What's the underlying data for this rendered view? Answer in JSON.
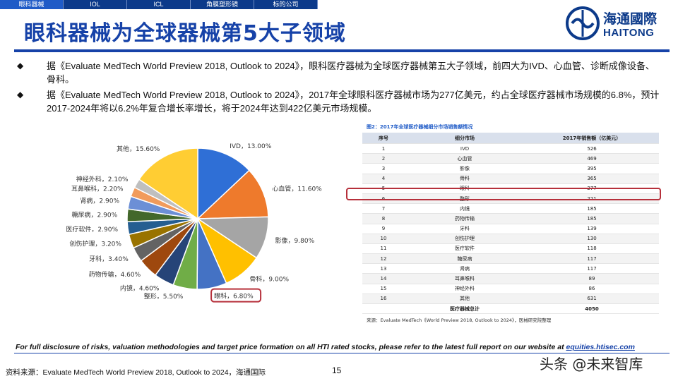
{
  "nav": {
    "tabs": [
      "眼科器械",
      "IOL",
      "ICL",
      "角膜塑形镜",
      "标的公司"
    ],
    "active_index": 0
  },
  "title": "眼科器械为全球器械第5大子领域",
  "logo": {
    "cn": "海通國際",
    "en": "HAITONG"
  },
  "bullets": [
    "据《Evaluate MedTech World Preview 2018, Outlook to 2024》，眼科医疗器械为全球医疗器械第五大子领域，前四大为IVD、心血管、诊断成像设备、骨科。",
    "据《Evaluate MedTech World Preview 2018, Outlook to 2024》，2017年全球眼科医疗器械市场为277亿美元，约占全球医疗器械市场规模的6.8%，预计2017-2024年将以6.2%年复合增长率增长，将于2024年达到422亿美元市场规模。"
  ],
  "bullet_marker": "◆",
  "table": {
    "title": "图2：2017年全球医疗器械细分市场销售额情况",
    "headers": [
      "序号",
      "细分市场",
      "2017年销售额（亿美元）"
    ],
    "rows": [
      [
        "1",
        "IVD",
        "526"
      ],
      [
        "2",
        "心血管",
        "469"
      ],
      [
        "3",
        "影像",
        "395"
      ],
      [
        "4",
        "骨科",
        "365"
      ],
      [
        "5",
        "眼科",
        "277"
      ],
      [
        "6",
        "整形",
        "221"
      ],
      [
        "7",
        "内镜",
        "185"
      ],
      [
        "8",
        "药物传输",
        "185"
      ],
      [
        "9",
        "牙科",
        "139"
      ],
      [
        "10",
        "创伤护理",
        "130"
      ],
      [
        "11",
        "医疗软件",
        "118"
      ],
      [
        "12",
        "糖尿病",
        "117"
      ],
      [
        "13",
        "肾病",
        "117"
      ],
      [
        "14",
        "耳鼻喉科",
        "89"
      ],
      [
        "15",
        "神经外科",
        "86"
      ],
      [
        "16",
        "其他",
        "631"
      ]
    ],
    "total_label": "医疗器械总计",
    "total_value": "4050",
    "note": "来源：Evaluate MedTech《World Preview 2018, Outlook to 2024》，医械研究院整理"
  },
  "chart_data": {
    "type": "pie",
    "title": "",
    "slices": [
      {
        "label": "IVD，13.00%",
        "value": 13.0,
        "color": "#2f6fd6"
      },
      {
        "label": "心血管，11.60%",
        "value": 11.6,
        "color": "#ee7a2c"
      },
      {
        "label": "影像，9.80%",
        "value": 9.8,
        "color": "#a5a5a5"
      },
      {
        "label": "骨科，9.00%",
        "value": 9.0,
        "color": "#ffc000"
      },
      {
        "label": "眼科，6.80%",
        "value": 6.8,
        "color": "#4472c4"
      },
      {
        "label": "整形，5.50%",
        "value": 5.5,
        "color": "#70ad47"
      },
      {
        "label": "内镜，4.60%",
        "value": 4.6,
        "color": "#264478"
      },
      {
        "label": "药物传输，4.60%",
        "value": 4.6,
        "color": "#9e480e"
      },
      {
        "label": "牙科，3.40%",
        "value": 3.4,
        "color": "#636363"
      },
      {
        "label": "创伤护理，3.20%",
        "value": 3.2,
        "color": "#997300"
      },
      {
        "label": "医疗软件，2.90%",
        "value": 2.9,
        "color": "#255e91"
      },
      {
        "label": "糖尿病，2.90%",
        "value": 2.9,
        "color": "#43682b"
      },
      {
        "label": "肾病，2.90%",
        "value": 2.9,
        "color": "#6c8fd6"
      },
      {
        "label": "耳鼻喉科，2.20%",
        "value": 2.2,
        "color": "#f19b5c"
      },
      {
        "label": "神经外科，2.10%",
        "value": 2.1,
        "color": "#bfbfbf"
      },
      {
        "label": "其他，15.60%",
        "value": 15.6,
        "color": "#ffcd33"
      }
    ],
    "highlighted_slice": "眼科，6.80%"
  },
  "disclaimer": {
    "text": "For full disclosure of risks, valuation methodologies and target price formation on all HTI rated stocks, please refer to the latest full report on our website at ",
    "link": "equities.htisec.com"
  },
  "source": "资料来源：Evaluate MedTech World Preview 2018, Outlook to 2024，海通国际",
  "page_number": "15",
  "watermark": "头条 @未来智库"
}
